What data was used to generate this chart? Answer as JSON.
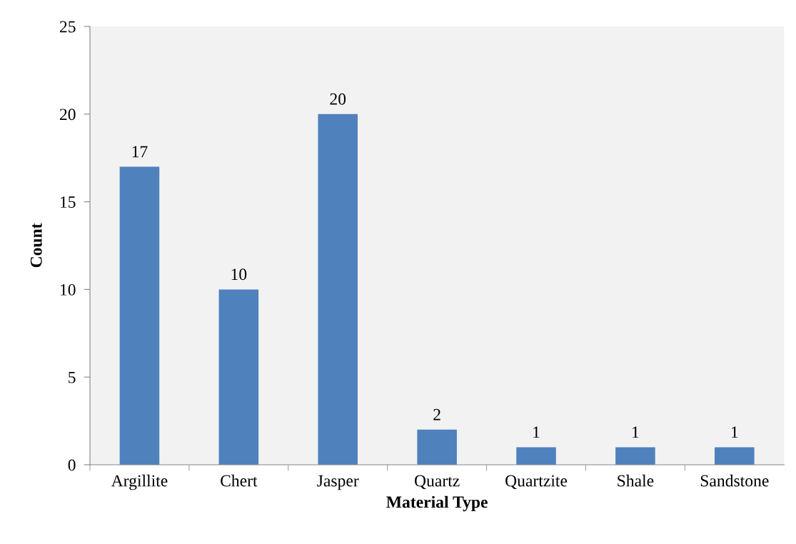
{
  "chart_data": {
    "type": "bar",
    "xlabel": "Material Type",
    "ylabel": "Count",
    "categories": [
      "Argillite",
      "Chert",
      "Jasper",
      "Quartz",
      "Quartzite",
      "Shale",
      "Sandstone"
    ],
    "values": [
      17,
      10,
      20,
      2,
      1,
      1,
      1
    ],
    "color": "#4f81bd",
    "ylim": [
      0,
      25
    ],
    "yticks": [
      0,
      5,
      10,
      15,
      20,
      25
    ],
    "grid": false,
    "data_labels": true
  }
}
